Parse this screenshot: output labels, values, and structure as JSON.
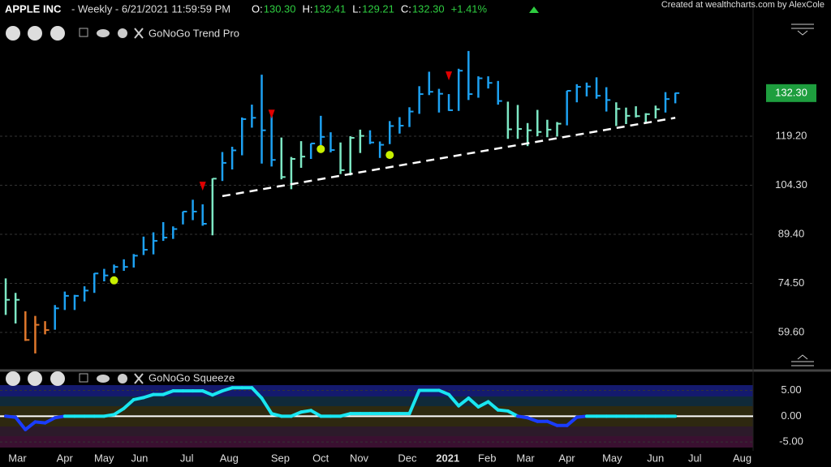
{
  "header": {
    "title": "APPLE INC",
    "meta": "- Weekly - 6/21/2021 11:59:59 PM",
    "quote": [
      {
        "label": "O:",
        "value": "130.30"
      },
      {
        "label": "H:",
        "value": "132.41"
      },
      {
        "label": "L:",
        "value": "129.21"
      },
      {
        "label": "C:",
        "value": "132.30"
      }
    ],
    "change": "+1.41%",
    "credit": "Created at wealthcharts.com by AlexCole"
  },
  "chart_data": [
    {
      "type": "ohlc",
      "title": "GoNoGo Trend Pro",
      "x": [
        0,
        1,
        2,
        3,
        4,
        5,
        6,
        7,
        8,
        9,
        10,
        11,
        12,
        13,
        14,
        15,
        16,
        17,
        18,
        19,
        20,
        21,
        22,
        23,
        24,
        25,
        26,
        27,
        28,
        29,
        30,
        31,
        32,
        33,
        34,
        35,
        36,
        37,
        38,
        39,
        40,
        41,
        42,
        43,
        44,
        45,
        46,
        47,
        48,
        49,
        50,
        51,
        52,
        53,
        54,
        55,
        56,
        57,
        58,
        59,
        60,
        61,
        62,
        63,
        64,
        65,
        66,
        67,
        68
      ],
      "high": [
        76.0,
        71.6,
        66.0,
        64.6,
        63.0,
        67.9,
        72.0,
        71.0,
        73.6,
        77.6,
        78.9,
        80.2,
        81.8,
        83.4,
        88.7,
        90.0,
        93.1,
        91.8,
        96.3,
        99.9,
        98.5,
        106.4,
        114.4,
        116.0,
        124.9,
        128.8,
        137.9,
        125.6,
        118.8,
        112.9,
        117.7,
        117.0,
        125.4,
        120.4,
        117.3,
        119.2,
        121.2,
        121.0,
        117.6,
        123.8,
        125.0,
        128.0,
        134.4,
        138.8,
        133.6,
        132.0,
        139.7,
        145.1,
        137.4,
        137.4,
        136.0,
        129.7,
        128.7,
        123.2,
        127.2,
        124.2,
        123.5,
        133.0,
        135.0,
        135.5,
        137.1,
        134.1,
        129.5,
        127.9,
        128.3,
        126.2,
        128.5,
        132.6,
        132.4
      ],
      "low": [
        64.9,
        62.3,
        57.0,
        53.2,
        59.0,
        60.4,
        66.4,
        66.4,
        69.0,
        71.6,
        75.1,
        77.6,
        78.3,
        79.3,
        83.1,
        83.3,
        87.4,
        88.0,
        92.4,
        93.7,
        92.0,
        89.1,
        105.6,
        109.1,
        113.4,
        121.8,
        110.9,
        110.0,
        106.1,
        103.1,
        109.6,
        112.3,
        115.7,
        114.3,
        107.7,
        107.3,
        114.1,
        116.8,
        112.6,
        116.8,
        120.0,
        122.0,
        126.0,
        131.7,
        126.4,
        126.9,
        126.9,
        130.2,
        130.9,
        133.7,
        128.8,
        118.4,
        118.4,
        116.2,
        119.2,
        118.9,
        119.1,
        122.5,
        129.5,
        131.3,
        130.6,
        126.7,
        122.3,
        122.9,
        124.9,
        123.1,
        124.6,
        126.4,
        129.2
      ],
      "close": [
        69.5,
        69.5,
        57.3,
        61.9,
        60.3,
        66.9,
        70.7,
        70.7,
        72.3,
        77.5,
        76.9,
        79.5,
        79.5,
        82.9,
        84.7,
        87.4,
        88.4,
        91.0,
        96.3,
        96.3,
        92.6,
        106.3,
        111.1,
        114.9,
        124.4,
        124.8,
        121.0,
        112.0,
        106.8,
        112.3,
        113.0,
        117.0,
        119.0,
        115.0,
        108.9,
        118.7,
        119.3,
        117.3,
        116.6,
        122.3,
        122.4,
        126.7,
        132.0,
        132.7,
        132.1,
        127.1,
        139.1,
        132.0,
        136.8,
        135.4,
        129.9,
        121.3,
        121.4,
        121.0,
        120.5,
        121.2,
        123.0,
        133.0,
        134.2,
        134.3,
        131.5,
        130.2,
        127.5,
        125.4,
        125.3,
        125.9,
        127.4,
        130.5,
        132.3
      ],
      "bar_colors": [
        "#7de8c4",
        "#7de8c4",
        "#e0782c",
        "#e0782c",
        "#e0782c",
        "#1da1f2",
        "#1da1f2",
        "#1da1f2",
        "#1da1f2",
        "#1da1f2",
        "#1da1f2",
        "#1da1f2",
        "#1da1f2",
        "#1da1f2",
        "#1da1f2",
        "#1da1f2",
        "#1da1f2",
        "#1da1f2",
        "#1da1f2",
        "#1da1f2",
        "#1da1f2",
        "#7de8c4",
        "#1da1f2",
        "#1da1f2",
        "#1da1f2",
        "#1da1f2",
        "#1da1f2",
        "#1da1f2",
        "#7de8c4",
        "#7de8c4",
        "#7de8c4",
        "#1da1f2",
        "#1da1f2",
        "#1da1f2",
        "#7de8c4",
        "#7de8c4",
        "#7de8c4",
        "#1da1f2",
        "#1da1f2",
        "#1da1f2",
        "#1da1f2",
        "#1da1f2",
        "#1da1f2",
        "#1da1f2",
        "#1da1f2",
        "#1da1f2",
        "#1da1f2",
        "#1da1f2",
        "#1da1f2",
        "#1da1f2",
        "#1da1f2",
        "#7de8c4",
        "#7de8c4",
        "#7de8c4",
        "#7de8c4",
        "#7de8c4",
        "#7de8c4",
        "#1da1f2",
        "#1da1f2",
        "#1da1f2",
        "#1da1f2",
        "#1da1f2",
        "#7de8c4",
        "#7de8c4",
        "#7de8c4",
        "#7de8c4",
        "#7de8c4",
        "#1da1f2",
        "#1da1f2"
      ],
      "go_dots": {
        "x": [
          11,
          32,
          39
        ],
        "y": [
          75.4,
          115.3,
          113.5
        ],
        "color": "#c8f000"
      },
      "nogo_arrows": {
        "x": [
          20,
          27,
          45
        ],
        "y": [
          103.9,
          125.8,
          137.4
        ],
        "color": "#e00000"
      },
      "trendline": {
        "x": [
          22,
          68
        ],
        "y": [
          101.0,
          124.8
        ],
        "color": "#ffffff"
      },
      "last_price": {
        "value": 132.3,
        "label": "132.30"
      },
      "last_price_color": "#1e9e3e",
      "xlim": [
        -0.58,
        75.9
      ],
      "ylim": [
        48.5,
        153.2
      ],
      "yticks": [
        {
          "value": 59.6,
          "label": "59.60"
        },
        {
          "value": 74.5,
          "label": "74.50"
        },
        {
          "value": 89.4,
          "label": "89.40"
        },
        {
          "value": 104.3,
          "label": "104.30"
        },
        {
          "value": 119.2,
          "label": "119.20"
        }
      ],
      "xticks": [
        {
          "value": 0.2,
          "label": "Mar"
        },
        {
          "value": 5,
          "label": "Apr"
        },
        {
          "value": 9,
          "label": "May"
        },
        {
          "value": 12.6,
          "label": "Jun"
        },
        {
          "value": 17.4,
          "label": "Jul"
        },
        {
          "value": 21.7,
          "label": "Aug"
        },
        {
          "value": 26.9,
          "label": "Sep"
        },
        {
          "value": 31,
          "label": "Oct"
        },
        {
          "value": 34.9,
          "label": "Nov"
        },
        {
          "value": 39.8,
          "label": "Dec"
        },
        {
          "value": 43.9,
          "label": "2021"
        },
        {
          "value": 47.9,
          "label": "Feb"
        },
        {
          "value": 51.8,
          "label": "Mar"
        },
        {
          "value": 56,
          "label": "Apr"
        },
        {
          "value": 60.6,
          "label": "May"
        },
        {
          "value": 65,
          "label": "Jun"
        },
        {
          "value": 69,
          "label": "Jul"
        },
        {
          "value": 73.8,
          "label": "Aug"
        }
      ]
    },
    {
      "type": "line",
      "title": "GoNoGo Squeeze",
      "x": [
        0,
        1,
        2,
        3,
        4,
        5,
        6,
        7,
        8,
        9,
        10,
        11,
        12,
        13,
        14,
        15,
        16,
        17,
        18,
        19,
        20,
        21,
        22,
        23,
        24,
        25,
        26,
        27,
        28,
        29,
        30,
        31,
        32,
        33,
        34,
        35,
        36,
        37,
        38,
        39,
        40,
        41,
        42,
        43,
        44,
        45,
        46,
        47,
        48,
        49,
        50,
        51,
        52,
        53,
        54,
        55,
        56,
        57,
        58,
        59,
        60,
        61,
        62,
        63,
        64,
        65,
        66,
        67,
        68
      ],
      "values": [
        0,
        -0.2,
        -2.6,
        -1.1,
        -1.3,
        -0.3,
        0,
        0,
        0,
        0,
        0,
        0.3,
        1.5,
        3.2,
        3.6,
        4.2,
        4.2,
        4.9,
        4.9,
        4.9,
        4.9,
        4.1,
        4.9,
        5.5,
        5.5,
        5.5,
        3.5,
        0.5,
        0,
        0,
        0.8,
        1.1,
        0,
        0,
        0,
        0.5,
        0.5,
        0.5,
        0.5,
        0.5,
        0.5,
        0.5,
        5,
        5,
        5,
        4.2,
        2,
        3.5,
        1.8,
        2.8,
        1.2,
        1,
        0,
        -0.3,
        -1,
        -1,
        -1.8,
        -1.8,
        -0.2,
        0,
        0,
        0,
        0,
        0,
        0,
        0,
        0,
        0,
        0
      ],
      "color": "#19e6f0",
      "negative_color": "#1a3cff",
      "xlim": [
        -0.58,
        75.9
      ],
      "ylim": [
        -6.7,
        6.8
      ],
      "yticks": [
        {
          "value": 5,
          "label": "5.00"
        },
        {
          "value": 0,
          "label": "0.00"
        },
        {
          "value": -5,
          "label": "-5.00"
        }
      ]
    }
  ]
}
